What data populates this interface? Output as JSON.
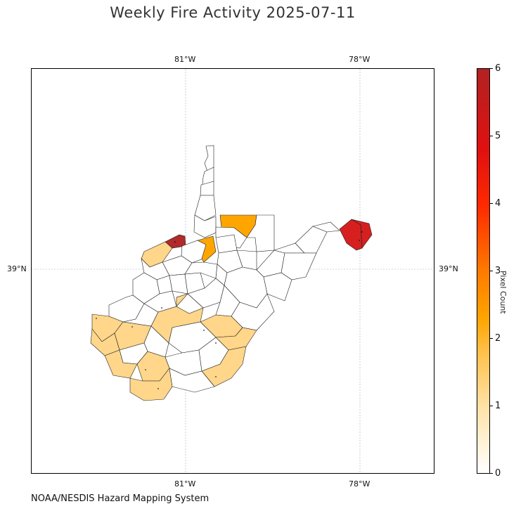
{
  "title": "Weekly Fire Activity 2025-07-11",
  "axes": {
    "lon_ticks": [
      "81°W",
      "78°W"
    ],
    "lat_ticks": [
      "39°N"
    ]
  },
  "colorbar": {
    "label": "Pixel Count",
    "ticks": [
      "0",
      "1",
      "2",
      "3",
      "4",
      "5",
      "6"
    ],
    "min": 0,
    "max": 6,
    "colors": [
      "#ffffff",
      "#ffd68a",
      "#ffa500",
      "#ff5a00",
      "#ff1a00",
      "#d81f1f",
      "#b22222"
    ]
  },
  "credit": "NOAA/NESDIS Hazard Mapping System",
  "legend_colors": {
    "count_1": "#ffd68a",
    "count_2": "#ffa500",
    "count_5": "#d62020",
    "count_6": "#b22a2a",
    "county_0": "#ffffff"
  }
}
